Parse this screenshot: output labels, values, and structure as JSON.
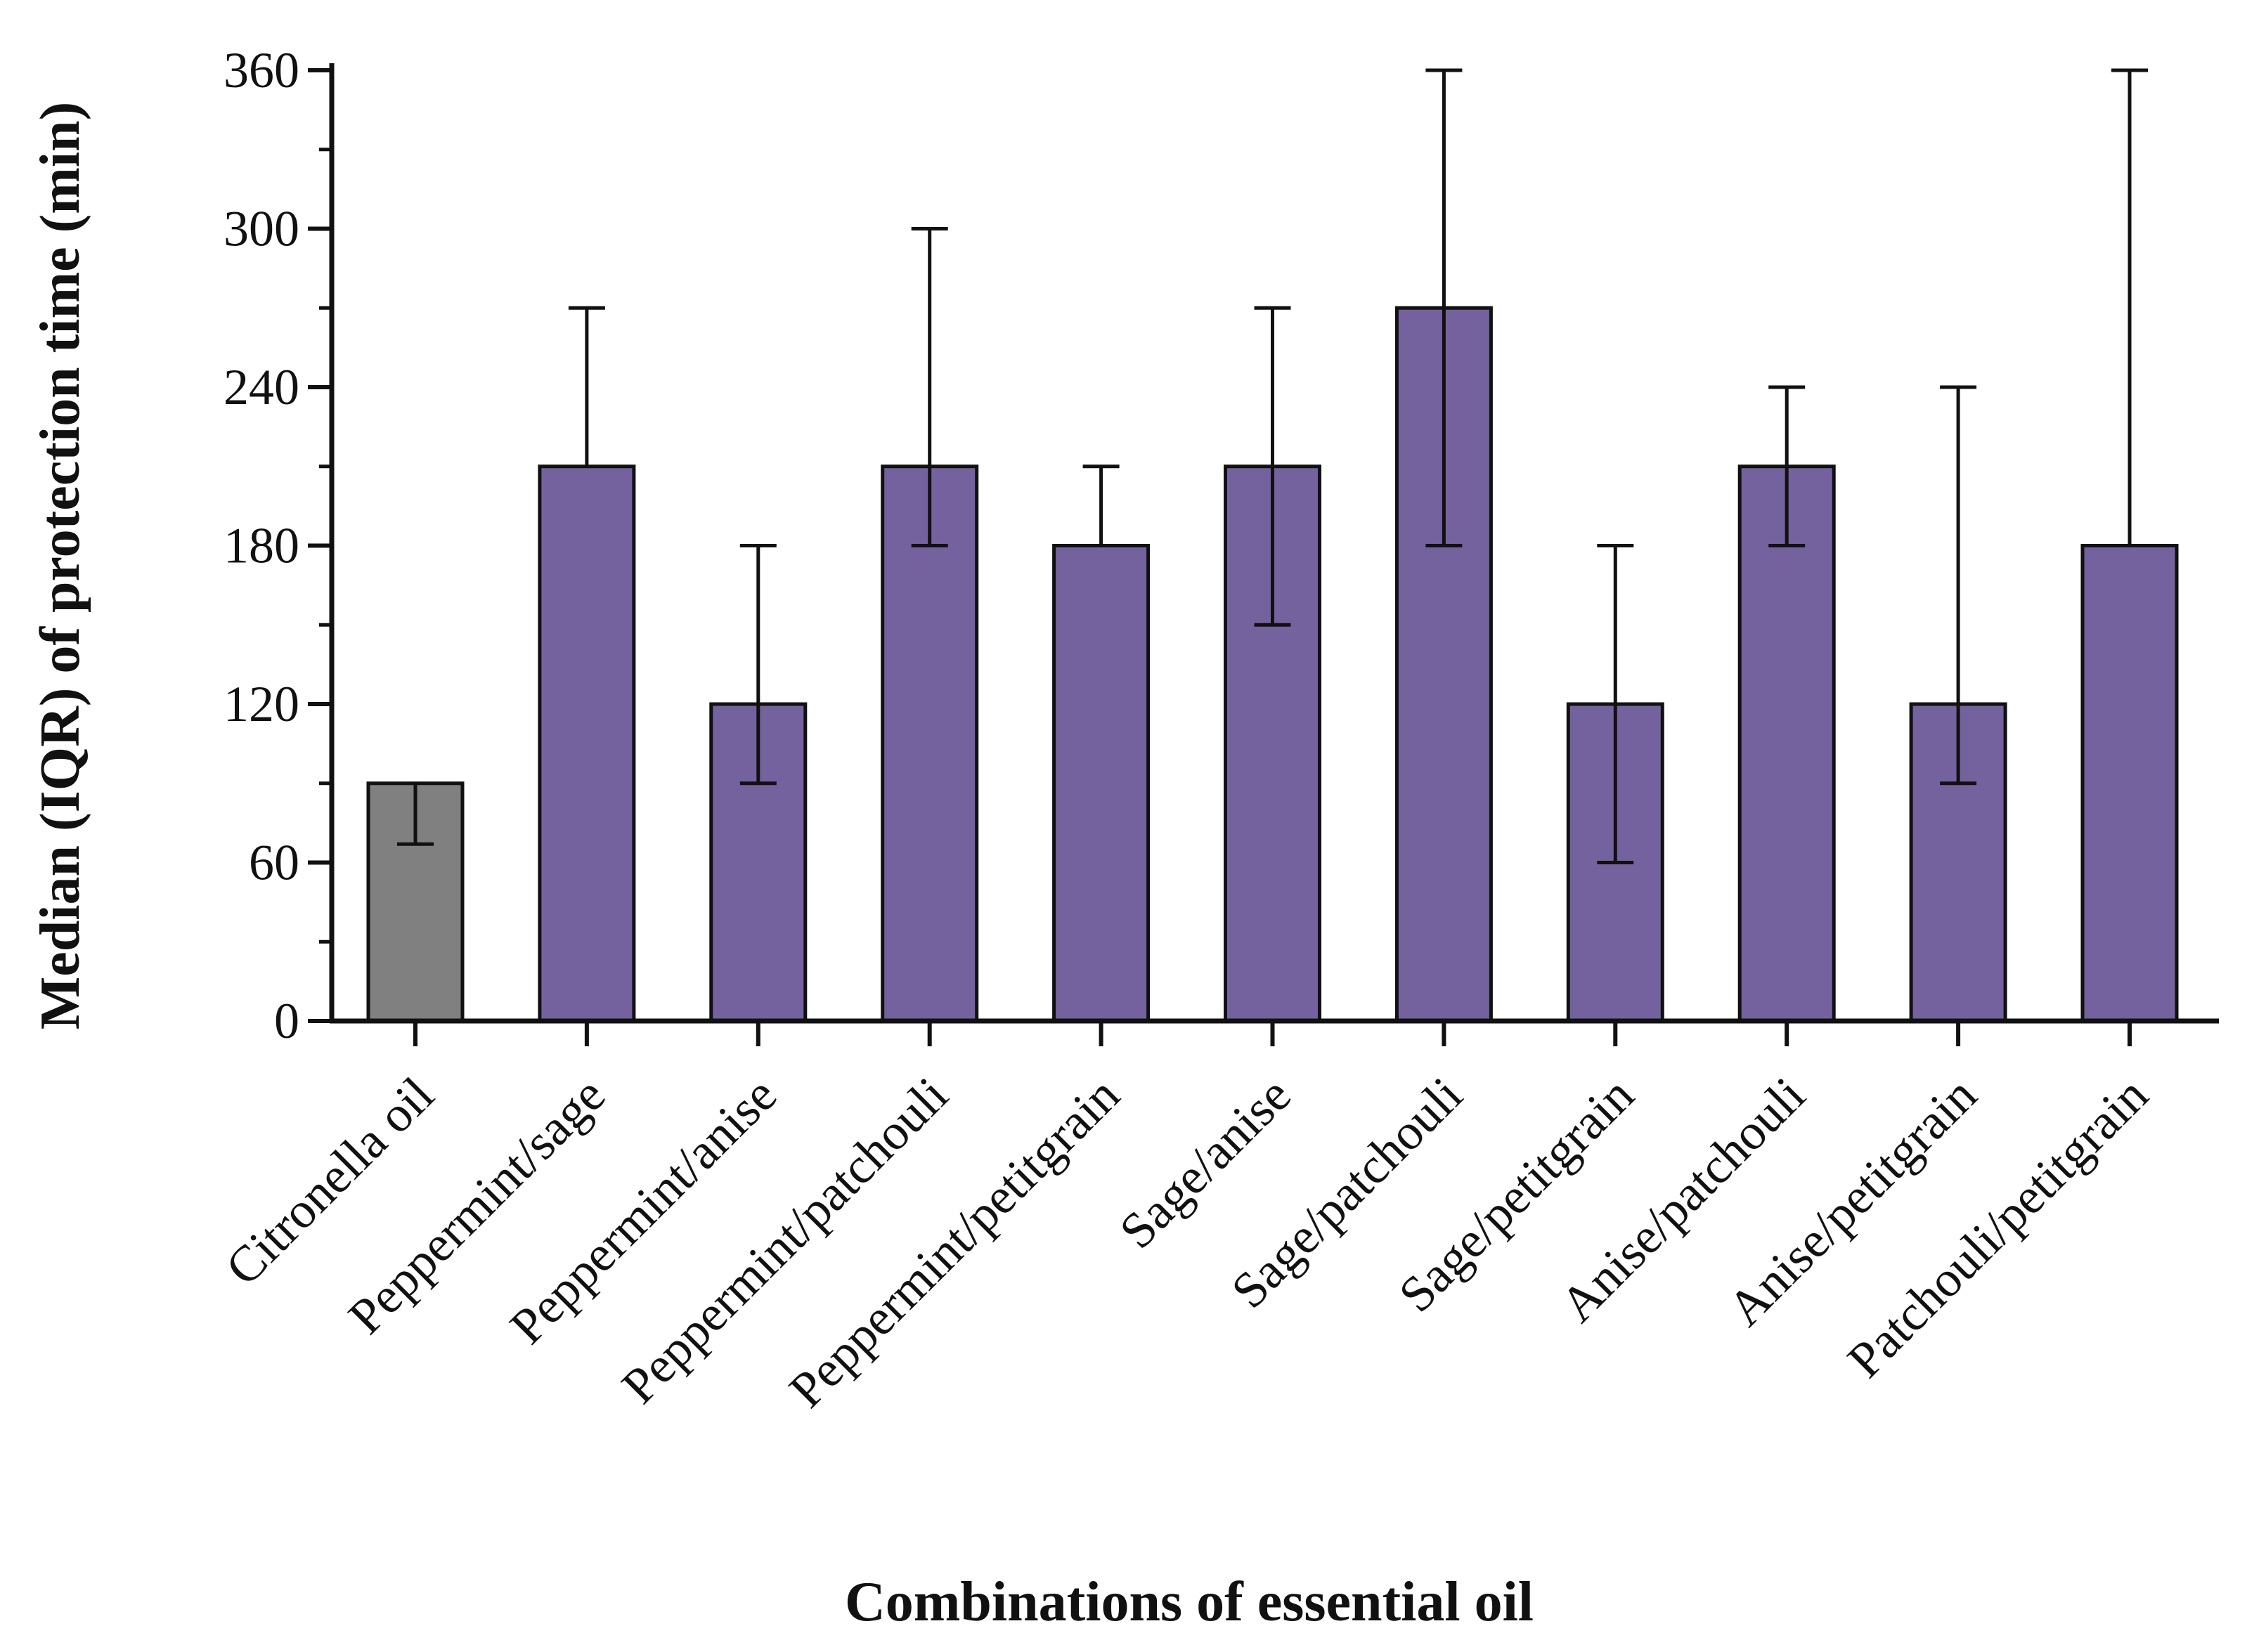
{
  "chart_data": {
    "type": "bar",
    "title": "",
    "xlabel": "Combinations of essential oil",
    "ylabel": "Median (IQR) of protection time (min)",
    "ylim": [
      0,
      360
    ],
    "yticks": [
      0,
      60,
      120,
      180,
      240,
      300,
      360
    ],
    "ytick_labels": [
      "0",
      "60",
      "120",
      "180",
      "240",
      "300",
      "360"
    ],
    "grid": false,
    "categories": [
      "Citronella oil",
      "Peppermint/sage",
      "Peppermint/anise",
      "Peppermint/patchouli",
      "Peppermint/petitgrain",
      "Sage/anise",
      "Sage/patchouli",
      "Sage/petitgrain",
      "Anise/patchouli",
      "Anise/petitgrain",
      "Patchouli/petitgrain"
    ],
    "values": [
      90,
      210,
      120,
      210,
      180,
      210,
      270,
      120,
      210,
      120,
      180
    ],
    "iqr_low": [
      67,
      210,
      90,
      180,
      180,
      150,
      180,
      60,
      180,
      90,
      180
    ],
    "iqr_high": [
      90,
      270,
      180,
      300,
      210,
      270,
      360,
      180,
      240,
      240,
      360
    ],
    "bar_colors": [
      "#808080",
      "#74629f",
      "#74629f",
      "#74629f",
      "#74629f",
      "#74629f",
      "#74629f",
      "#74629f",
      "#74629f",
      "#74629f",
      "#74629f"
    ],
    "bar_edge_color": "#111111",
    "axis_color": "#111111"
  }
}
